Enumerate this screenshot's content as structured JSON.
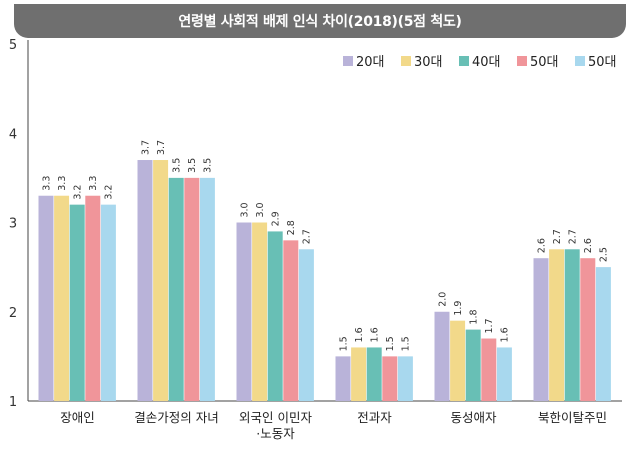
{
  "title": "연령별 사회적 배제 인식 차이(2018)(5점 척도)",
  "colors": {
    "title_bg": "#6f6f6f",
    "axis": "#444444",
    "series": [
      "#b9b3d9",
      "#f2d98a",
      "#68bfb5",
      "#f0959a",
      "#a8d8ee"
    ]
  },
  "chart_data": {
    "type": "bar",
    "title": "연령별 사회적 배제 인식 차이(2018)(5점 척도)",
    "xlabel": "",
    "ylabel": "",
    "ylim": [
      1,
      5
    ],
    "yticks": [
      "1",
      "2",
      "3",
      "4",
      "5"
    ],
    "grid": false,
    "legend_position": "top-right",
    "categories": [
      "장애인",
      "결손가정의 자녀",
      "외국인 이민자\n·노동자",
      "전과자",
      "동성애자",
      "북한이탈주민"
    ],
    "series": [
      {
        "name": "20대",
        "values": [
          3.3,
          3.7,
          3.0,
          1.5,
          2.0,
          2.6
        ]
      },
      {
        "name": "30대",
        "values": [
          3.3,
          3.7,
          3.0,
          1.6,
          1.9,
          2.7
        ]
      },
      {
        "name": "40대",
        "values": [
          3.2,
          3.5,
          2.9,
          1.6,
          1.8,
          2.7
        ]
      },
      {
        "name": "50대",
        "values": [
          3.3,
          3.5,
          2.8,
          1.5,
          1.7,
          2.6
        ]
      },
      {
        "name": "50대",
        "values": [
          3.2,
          3.5,
          2.7,
          1.5,
          1.6,
          2.5
        ]
      }
    ]
  }
}
